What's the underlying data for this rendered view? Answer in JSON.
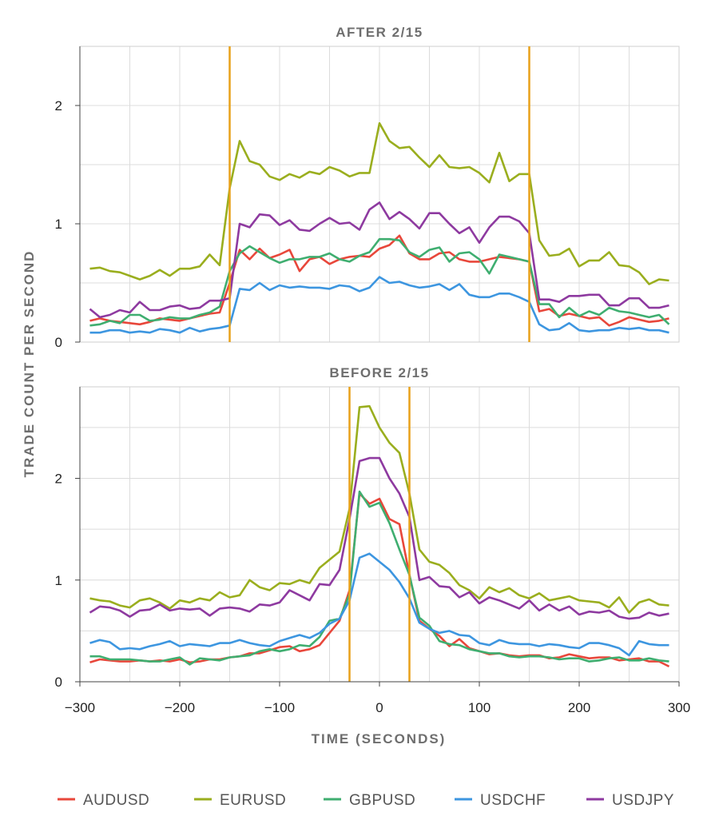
{
  "chart_data": {
    "type": "line",
    "ylabel": "TRADE COUNT PER SECOND",
    "xlabel": "TIME (SECONDS)",
    "xlim": [
      -300,
      300
    ],
    "x_ticks": [
      -300,
      -200,
      -100,
      0,
      100,
      200,
      300
    ],
    "x_tick_labels": [
      "−300",
      "−200",
      "−100",
      "0",
      "100",
      "200",
      "300"
    ],
    "legend_position": "bottom",
    "grid": true,
    "series_styles": [
      {
        "name": "AUDUSD",
        "color": "#e8473b"
      },
      {
        "name": "EURUSD",
        "color": "#9aae1e"
      },
      {
        "name": "GBPUSD",
        "color": "#3fae70"
      },
      {
        "name": "USDCHF",
        "color": "#3d96e0"
      },
      {
        "name": "USDJPY",
        "color": "#8e3aa0"
      }
    ],
    "marker_color": "#e8a11a",
    "x": [
      -290,
      -280,
      -270,
      -260,
      -250,
      -240,
      -230,
      -220,
      -210,
      -200,
      -190,
      -180,
      -170,
      -160,
      -150,
      -140,
      -130,
      -120,
      -110,
      -100,
      -90,
      -80,
      -70,
      -60,
      -50,
      -40,
      -30,
      -20,
      -10,
      0,
      10,
      20,
      30,
      40,
      50,
      60,
      70,
      80,
      90,
      100,
      110,
      120,
      130,
      140,
      150,
      160,
      170,
      180,
      190,
      200,
      210,
      220,
      230,
      240,
      250,
      260,
      270,
      280,
      290
    ],
    "panels": [
      {
        "title": "AFTER 2/15",
        "ylim": [
          0,
          2.5
        ],
        "y_ticks": [
          0,
          1,
          2
        ],
        "y_tick_labels": [
          "0",
          "1",
          "2"
        ],
        "markers": [
          -150,
          150
        ],
        "series": [
          {
            "name": "AUDUSD",
            "values": [
              0.18,
              0.2,
              0.18,
              0.17,
              0.16,
              0.15,
              0.17,
              0.2,
              0.19,
              0.18,
              0.2,
              0.22,
              0.24,
              0.25,
              0.5,
              0.78,
              0.7,
              0.79,
              0.71,
              0.74,
              0.78,
              0.6,
              0.7,
              0.72,
              0.66,
              0.7,
              0.72,
              0.73,
              0.72,
              0.79,
              0.82,
              0.9,
              0.75,
              0.7,
              0.7,
              0.75,
              0.76,
              0.7,
              0.68,
              0.68,
              0.7,
              0.72,
              0.71,
              0.7,
              0.68,
              0.26,
              0.28,
              0.22,
              0.24,
              0.22,
              0.2,
              0.21,
              0.14,
              0.17,
              0.21,
              0.19,
              0.17,
              0.18,
              0.2
            ]
          },
          {
            "name": "EURUSD",
            "values": [
              0.62,
              0.63,
              0.6,
              0.59,
              0.56,
              0.53,
              0.56,
              0.61,
              0.56,
              0.62,
              0.62,
              0.64,
              0.74,
              0.65,
              1.3,
              1.7,
              1.53,
              1.5,
              1.4,
              1.37,
              1.42,
              1.39,
              1.44,
              1.42,
              1.48,
              1.45,
              1.4,
              1.43,
              1.43,
              1.85,
              1.7,
              1.64,
              1.65,
              1.56,
              1.48,
              1.58,
              1.48,
              1.47,
              1.48,
              1.43,
              1.35,
              1.6,
              1.36,
              1.42,
              1.42,
              0.86,
              0.73,
              0.74,
              0.79,
              0.64,
              0.69,
              0.69,
              0.76,
              0.65,
              0.64,
              0.59,
              0.49,
              0.53,
              0.52
            ]
          },
          {
            "name": "GBPUSD",
            "values": [
              0.14,
              0.15,
              0.18,
              0.16,
              0.23,
              0.23,
              0.18,
              0.19,
              0.21,
              0.2,
              0.2,
              0.23,
              0.25,
              0.3,
              0.6,
              0.75,
              0.81,
              0.76,
              0.71,
              0.67,
              0.7,
              0.7,
              0.72,
              0.72,
              0.75,
              0.7,
              0.68,
              0.73,
              0.76,
              0.87,
              0.87,
              0.86,
              0.76,
              0.72,
              0.78,
              0.8,
              0.68,
              0.75,
              0.76,
              0.7,
              0.58,
              0.74,
              0.72,
              0.7,
              0.68,
              0.32,
              0.32,
              0.21,
              0.29,
              0.22,
              0.26,
              0.23,
              0.29,
              0.26,
              0.25,
              0.23,
              0.21,
              0.23,
              0.15
            ]
          },
          {
            "name": "USDCHF",
            "values": [
              0.08,
              0.08,
              0.1,
              0.1,
              0.08,
              0.09,
              0.08,
              0.11,
              0.1,
              0.08,
              0.12,
              0.09,
              0.11,
              0.12,
              0.14,
              0.45,
              0.44,
              0.5,
              0.44,
              0.48,
              0.46,
              0.47,
              0.46,
              0.46,
              0.45,
              0.48,
              0.47,
              0.43,
              0.46,
              0.55,
              0.5,
              0.51,
              0.48,
              0.46,
              0.47,
              0.49,
              0.44,
              0.49,
              0.4,
              0.38,
              0.38,
              0.41,
              0.41,
              0.38,
              0.34,
              0.15,
              0.1,
              0.11,
              0.16,
              0.1,
              0.09,
              0.1,
              0.1,
              0.12,
              0.11,
              0.12,
              0.1,
              0.1,
              0.08
            ]
          },
          {
            "name": "USDJPY",
            "values": [
              0.28,
              0.21,
              0.23,
              0.27,
              0.25,
              0.34,
              0.27,
              0.27,
              0.3,
              0.31,
              0.28,
              0.29,
              0.35,
              0.35,
              0.37,
              1.0,
              0.97,
              1.08,
              1.07,
              0.99,
              1.03,
              0.95,
              0.94,
              1.0,
              1.05,
              1.0,
              1.01,
              0.95,
              1.12,
              1.18,
              1.04,
              1.1,
              1.04,
              0.96,
              1.09,
              1.09,
              1.0,
              0.92,
              0.97,
              0.84,
              0.97,
              1.06,
              1.06,
              1.02,
              0.92,
              0.36,
              0.36,
              0.34,
              0.39,
              0.39,
              0.4,
              0.4,
              0.31,
              0.31,
              0.37,
              0.37,
              0.29,
              0.29,
              0.31
            ]
          }
        ]
      },
      {
        "title": "BEFORE 2/15",
        "ylim": [
          0,
          2.9
        ],
        "y_ticks": [
          0,
          1,
          2
        ],
        "y_tick_labels": [
          "0",
          "1",
          "2"
        ],
        "markers": [
          -30,
          30
        ],
        "series": [
          {
            "name": "AUDUSD",
            "values": [
              0.19,
              0.22,
              0.21,
              0.2,
              0.2,
              0.21,
              0.2,
              0.21,
              0.2,
              0.22,
              0.19,
              0.2,
              0.22,
              0.22,
              0.24,
              0.25,
              0.28,
              0.28,
              0.31,
              0.34,
              0.35,
              0.3,
              0.32,
              0.36,
              0.48,
              0.6,
              0.9,
              1.85,
              1.75,
              1.8,
              1.6,
              1.55,
              1.05,
              0.6,
              0.52,
              0.45,
              0.35,
              0.42,
              0.33,
              0.3,
              0.27,
              0.28,
              0.26,
              0.25,
              0.26,
              0.26,
              0.23,
              0.24,
              0.27,
              0.25,
              0.23,
              0.24,
              0.24,
              0.21,
              0.22,
              0.23,
              0.2,
              0.2,
              0.15
            ]
          },
          {
            "name": "EURUSD",
            "values": [
              0.82,
              0.8,
              0.79,
              0.75,
              0.73,
              0.8,
              0.82,
              0.78,
              0.72,
              0.8,
              0.78,
              0.82,
              0.8,
              0.88,
              0.83,
              0.85,
              1.0,
              0.93,
              0.9,
              0.97,
              0.96,
              1.0,
              0.97,
              1.12,
              1.2,
              1.28,
              1.7,
              2.7,
              2.71,
              2.5,
              2.35,
              2.25,
              1.85,
              1.3,
              1.18,
              1.15,
              1.07,
              0.95,
              0.9,
              0.82,
              0.93,
              0.88,
              0.92,
              0.85,
              0.82,
              0.87,
              0.8,
              0.82,
              0.84,
              0.8,
              0.79,
              0.78,
              0.73,
              0.83,
              0.68,
              0.78,
              0.81,
              0.76,
              0.75
            ]
          },
          {
            "name": "GBPUSD",
            "values": [
              0.25,
              0.25,
              0.22,
              0.22,
              0.22,
              0.21,
              0.2,
              0.2,
              0.22,
              0.24,
              0.17,
              0.23,
              0.22,
              0.21,
              0.24,
              0.25,
              0.26,
              0.3,
              0.32,
              0.3,
              0.32,
              0.36,
              0.35,
              0.44,
              0.6,
              0.62,
              0.86,
              1.87,
              1.72,
              1.76,
              1.56,
              1.3,
              1.05,
              0.63,
              0.55,
              0.4,
              0.37,
              0.36,
              0.32,
              0.3,
              0.28,
              0.28,
              0.25,
              0.24,
              0.25,
              0.25,
              0.24,
              0.22,
              0.23,
              0.23,
              0.2,
              0.21,
              0.23,
              0.24,
              0.21,
              0.21,
              0.23,
              0.21,
              0.2
            ]
          },
          {
            "name": "USDCHF",
            "values": [
              0.38,
              0.41,
              0.39,
              0.32,
              0.33,
              0.32,
              0.35,
              0.37,
              0.4,
              0.35,
              0.37,
              0.36,
              0.35,
              0.38,
              0.38,
              0.41,
              0.38,
              0.36,
              0.35,
              0.4,
              0.43,
              0.46,
              0.43,
              0.48,
              0.57,
              0.62,
              0.8,
              1.22,
              1.26,
              1.18,
              1.1,
              0.98,
              0.82,
              0.58,
              0.52,
              0.48,
              0.5,
              0.46,
              0.45,
              0.38,
              0.36,
              0.41,
              0.38,
              0.37,
              0.37,
              0.35,
              0.37,
              0.36,
              0.34,
              0.33,
              0.38,
              0.38,
              0.36,
              0.33,
              0.26,
              0.4,
              0.37,
              0.36,
              0.36
            ]
          },
          {
            "name": "USDJPY",
            "values": [
              0.68,
              0.74,
              0.73,
              0.7,
              0.64,
              0.7,
              0.71,
              0.76,
              0.7,
              0.72,
              0.71,
              0.72,
              0.65,
              0.72,
              0.73,
              0.72,
              0.69,
              0.76,
              0.75,
              0.78,
              0.9,
              0.85,
              0.8,
              0.96,
              0.95,
              1.1,
              1.6,
              2.17,
              2.2,
              2.2,
              2.0,
              1.85,
              1.62,
              1.0,
              1.03,
              0.94,
              0.93,
              0.83,
              0.88,
              0.77,
              0.83,
              0.8,
              0.76,
              0.72,
              0.8,
              0.7,
              0.76,
              0.7,
              0.74,
              0.66,
              0.69,
              0.68,
              0.7,
              0.64,
              0.62,
              0.63,
              0.68,
              0.65,
              0.67
            ]
          }
        ]
      }
    ]
  }
}
